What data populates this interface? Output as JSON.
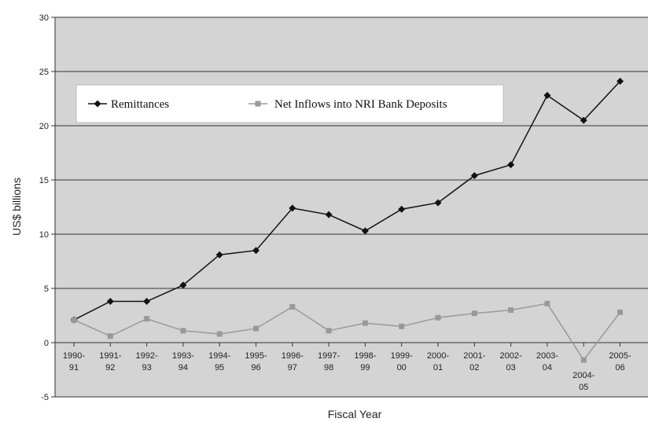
{
  "chart_data": {
    "type": "line",
    "xlabel": "Fiscal Year",
    "ylabel": "US$ billions",
    "ylim": [
      -5,
      30
    ],
    "yticks": [
      -5,
      0,
      5,
      10,
      15,
      20,
      25,
      30
    ],
    "grid": true,
    "legend_position": "top-left",
    "plot_background": "#d4d4d4",
    "categories": [
      [
        "1990-",
        "91"
      ],
      [
        "1991-",
        "92"
      ],
      [
        "1992-",
        "93"
      ],
      [
        "1993-",
        "94"
      ],
      [
        "1994-",
        "95"
      ],
      [
        "1995-",
        "96"
      ],
      [
        "1996-",
        "97"
      ],
      [
        "1997-",
        "98"
      ],
      [
        "1998-",
        "99"
      ],
      [
        "1999-",
        "00"
      ],
      [
        "2000-",
        "01"
      ],
      [
        "2001-",
        "02"
      ],
      [
        "2002-",
        "03"
      ],
      [
        "2003-",
        "04"
      ],
      [
        "2004-",
        "05"
      ],
      [
        "2005-",
        "06"
      ]
    ],
    "series": [
      {
        "name": "Remittances",
        "color": "#111111",
        "marker": "diamond",
        "values": [
          2.1,
          3.8,
          3.8,
          5.3,
          8.1,
          8.5,
          12.4,
          11.8,
          10.3,
          12.3,
          12.9,
          15.4,
          16.4,
          22.8,
          20.5,
          24.1
        ]
      },
      {
        "name": "Net Inflows into NRI Bank Deposits",
        "color": "#999999",
        "marker": "square",
        "values": [
          2.1,
          0.6,
          2.2,
          1.1,
          0.8,
          1.3,
          3.3,
          1.1,
          1.8,
          1.5,
          2.3,
          2.7,
          3.0,
          3.6,
          -1.6,
          2.8
        ]
      }
    ]
  }
}
